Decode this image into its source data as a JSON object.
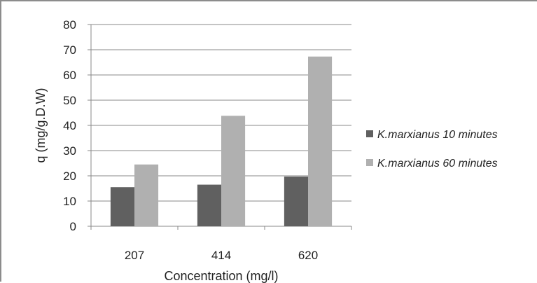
{
  "chart_data": {
    "type": "bar",
    "categories": [
      "207",
      "414",
      "620"
    ],
    "series": [
      {
        "name": "K.marxianus 10 minutes",
        "values": [
          15.5,
          16.5,
          19.7
        ],
        "color": "#606060"
      },
      {
        "name": "K.marxianus 60 minutes",
        "values": [
          24.5,
          43.8,
          67.3
        ],
        "color": "#b0b0b0"
      }
    ],
    "title": "",
    "xlabel": "Concentration (mg/l)",
    "ylabel": "q (mg/g.D.W)",
    "ylim": [
      0,
      80
    ],
    "yticks": [
      0,
      10,
      20,
      30,
      40,
      50,
      60,
      70,
      80
    ],
    "grid": true,
    "legend_position": "right"
  }
}
